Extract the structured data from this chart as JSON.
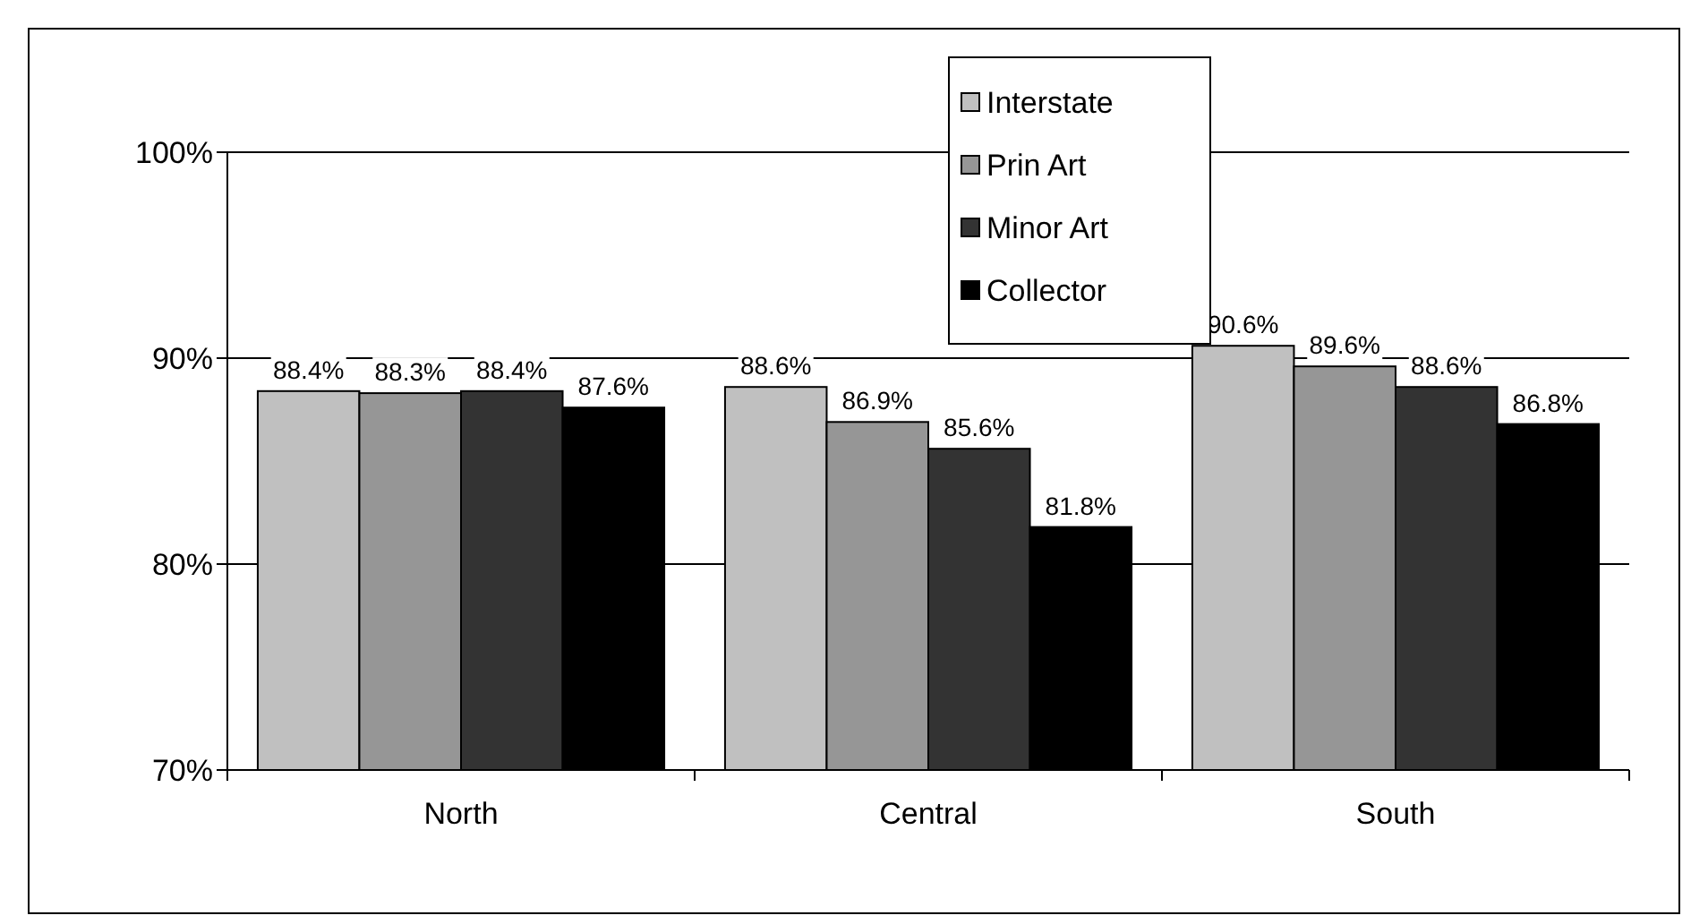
{
  "chart_data": {
    "type": "bar",
    "categories": [
      "North",
      "Central",
      "South"
    ],
    "series": [
      {
        "name": "Interstate",
        "color": "#c0c0c0",
        "values": [
          88.4,
          88.6,
          90.6
        ],
        "value_labels": [
          "88.4%",
          "88.6%",
          "90.6%"
        ]
      },
      {
        "name": "Prin Art",
        "color": "#969696",
        "values": [
          88.3,
          86.9,
          89.6
        ],
        "value_labels": [
          "88.3%",
          "86.9%",
          "89.6%"
        ]
      },
      {
        "name": "Minor Art",
        "color": "#333333",
        "values": [
          88.4,
          85.6,
          88.6
        ],
        "value_labels": [
          "88.4%",
          "85.6%",
          "88.6%"
        ]
      },
      {
        "name": "Collector",
        "color": "#000000",
        "values": [
          87.6,
          81.8,
          86.8
        ],
        "value_labels": [
          "87.6%",
          "81.8%",
          "86.8%"
        ]
      }
    ],
    "ylim": [
      70,
      100
    ],
    "yticks": [
      {
        "value": 70,
        "label": "70%"
      },
      {
        "value": 80,
        "label": "80%"
      },
      {
        "value": 90,
        "label": "90%"
      },
      {
        "value": 100,
        "label": "100%"
      }
    ],
    "grid": "y",
    "legend": "top"
  }
}
